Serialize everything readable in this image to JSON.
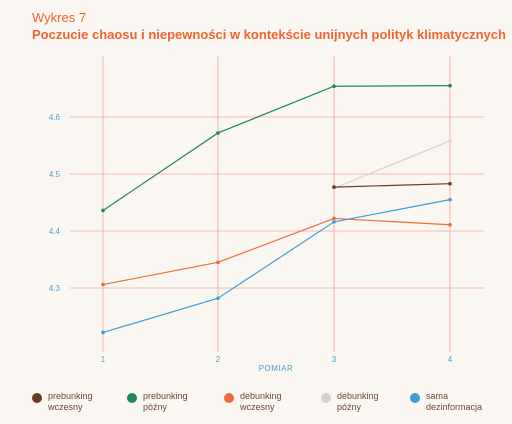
{
  "header": {
    "kicker": "Wykres 7",
    "title": "Poczucie chaosu i niepewności w kontekście unijnych polityk klimatycznych"
  },
  "colors": {
    "accent": "#f0642f",
    "grid": "#f4a79a",
    "axis_text": "#4a9fd4"
  },
  "chart_data": {
    "type": "line",
    "title": "Poczucie chaosu i niepewności w kontekście unijnych polityk klimatycznych",
    "xlabel": "POMIAR",
    "ylabel": "",
    "x": [
      1,
      2,
      3,
      4
    ],
    "xticks": [
      "1",
      "2",
      "3",
      "4"
    ],
    "ylim": [
      4.22,
      4.7
    ],
    "yticks": [
      4.3,
      4.4,
      4.5,
      4.6
    ],
    "ytick_labels": [
      "4.3",
      "4.4",
      "4.5",
      "4.6"
    ],
    "grid": true,
    "legend_position": "bottom",
    "series": [
      {
        "name": "prebunking\nwczesny",
        "color": "#6b3a22",
        "points": [
          [
            3,
            4.477
          ],
          [
            4,
            4.483
          ]
        ]
      },
      {
        "name": "prebunking\npóźny",
        "color": "#1e8a57",
        "points": [
          [
            1,
            4.436
          ],
          [
            2,
            4.572
          ],
          [
            3,
            4.654
          ],
          [
            4,
            4.655
          ]
        ]
      },
      {
        "name": "debunking\nwczesny",
        "color": "#f06a3c",
        "points": [
          [
            1,
            4.306
          ],
          [
            2,
            4.345
          ],
          [
            3,
            4.422
          ],
          [
            4,
            4.411
          ]
        ]
      },
      {
        "name": "debunking\npóźny",
        "color": "#d9d2cc",
        "points": [
          [
            3,
            4.475
          ],
          [
            4,
            4.558
          ]
        ]
      },
      {
        "name": "sama\ndezinformacja",
        "color": "#3e9ed6",
        "points": [
          [
            1,
            4.222
          ],
          [
            2,
            4.282
          ],
          [
            3,
            4.416
          ],
          [
            4,
            4.455
          ]
        ]
      }
    ]
  }
}
